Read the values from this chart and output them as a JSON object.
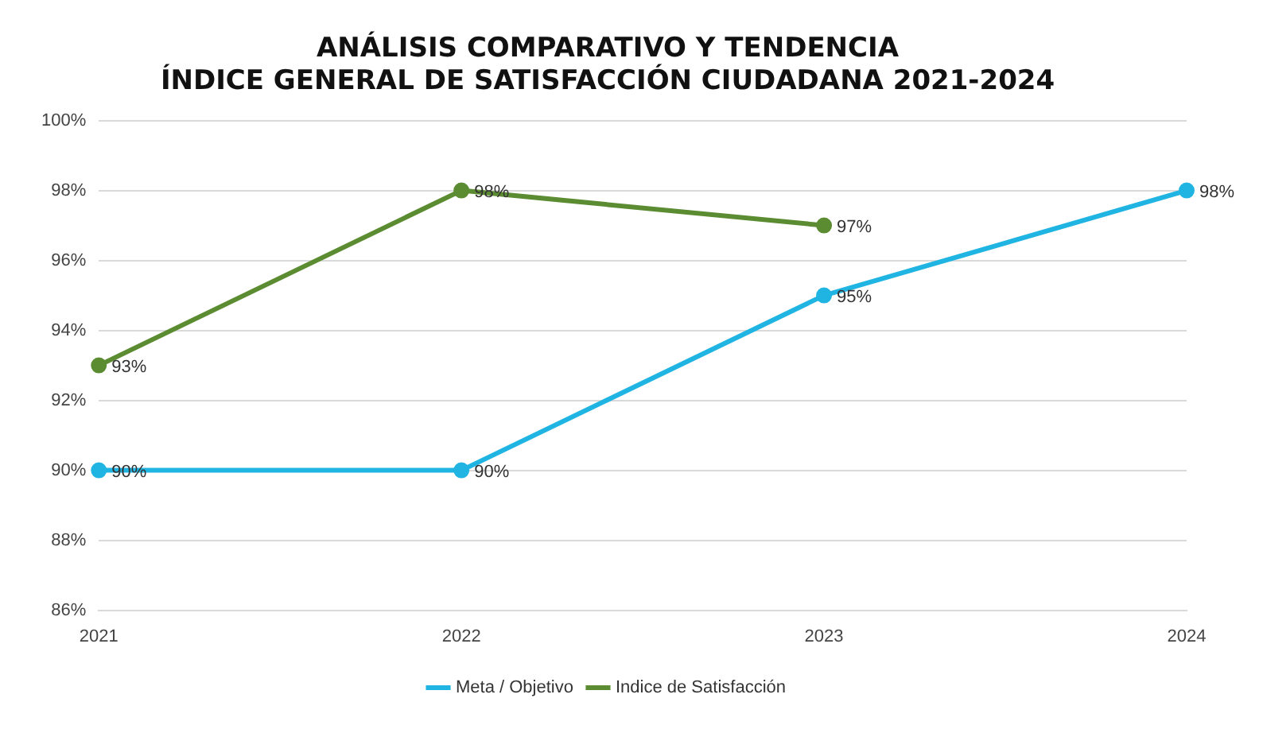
{
  "chart_data": {
    "type": "line",
    "title": "ANÁLISIS COMPARATIVO Y TENDENCIA\nÍNDICE GENERAL DE SATISFACCIÓN CIUDADANA 2021-2024",
    "categories": [
      "2021",
      "2022",
      "2023",
      "2024"
    ],
    "series": [
      {
        "name": "Meta / Objetivo",
        "color": "#1fb4e2",
        "values": [
          90,
          90,
          95,
          98
        ],
        "value_labels": [
          "90%",
          "90%",
          "95%",
          "98%"
        ]
      },
      {
        "name": "Indice de Satisfacción",
        "color": "#5b8c32",
        "values": [
          93,
          98,
          97,
          null
        ],
        "value_labels": [
          "93%",
          "98%",
          "97%",
          null
        ]
      }
    ],
    "ylim": [
      86,
      100
    ],
    "yticks": [
      {
        "value": 86,
        "label": "86%"
      },
      {
        "value": 88,
        "label": "88%"
      },
      {
        "value": 90,
        "label": "90%"
      },
      {
        "value": 92,
        "label": "92%"
      },
      {
        "value": 94,
        "label": "94%"
      },
      {
        "value": 96,
        "label": "96%"
      },
      {
        "value": 98,
        "label": "98%"
      },
      {
        "value": 100,
        "label": "100%"
      }
    ],
    "grid": "y",
    "legend": "bottom",
    "marker": "circle",
    "line_style": "solid"
  }
}
